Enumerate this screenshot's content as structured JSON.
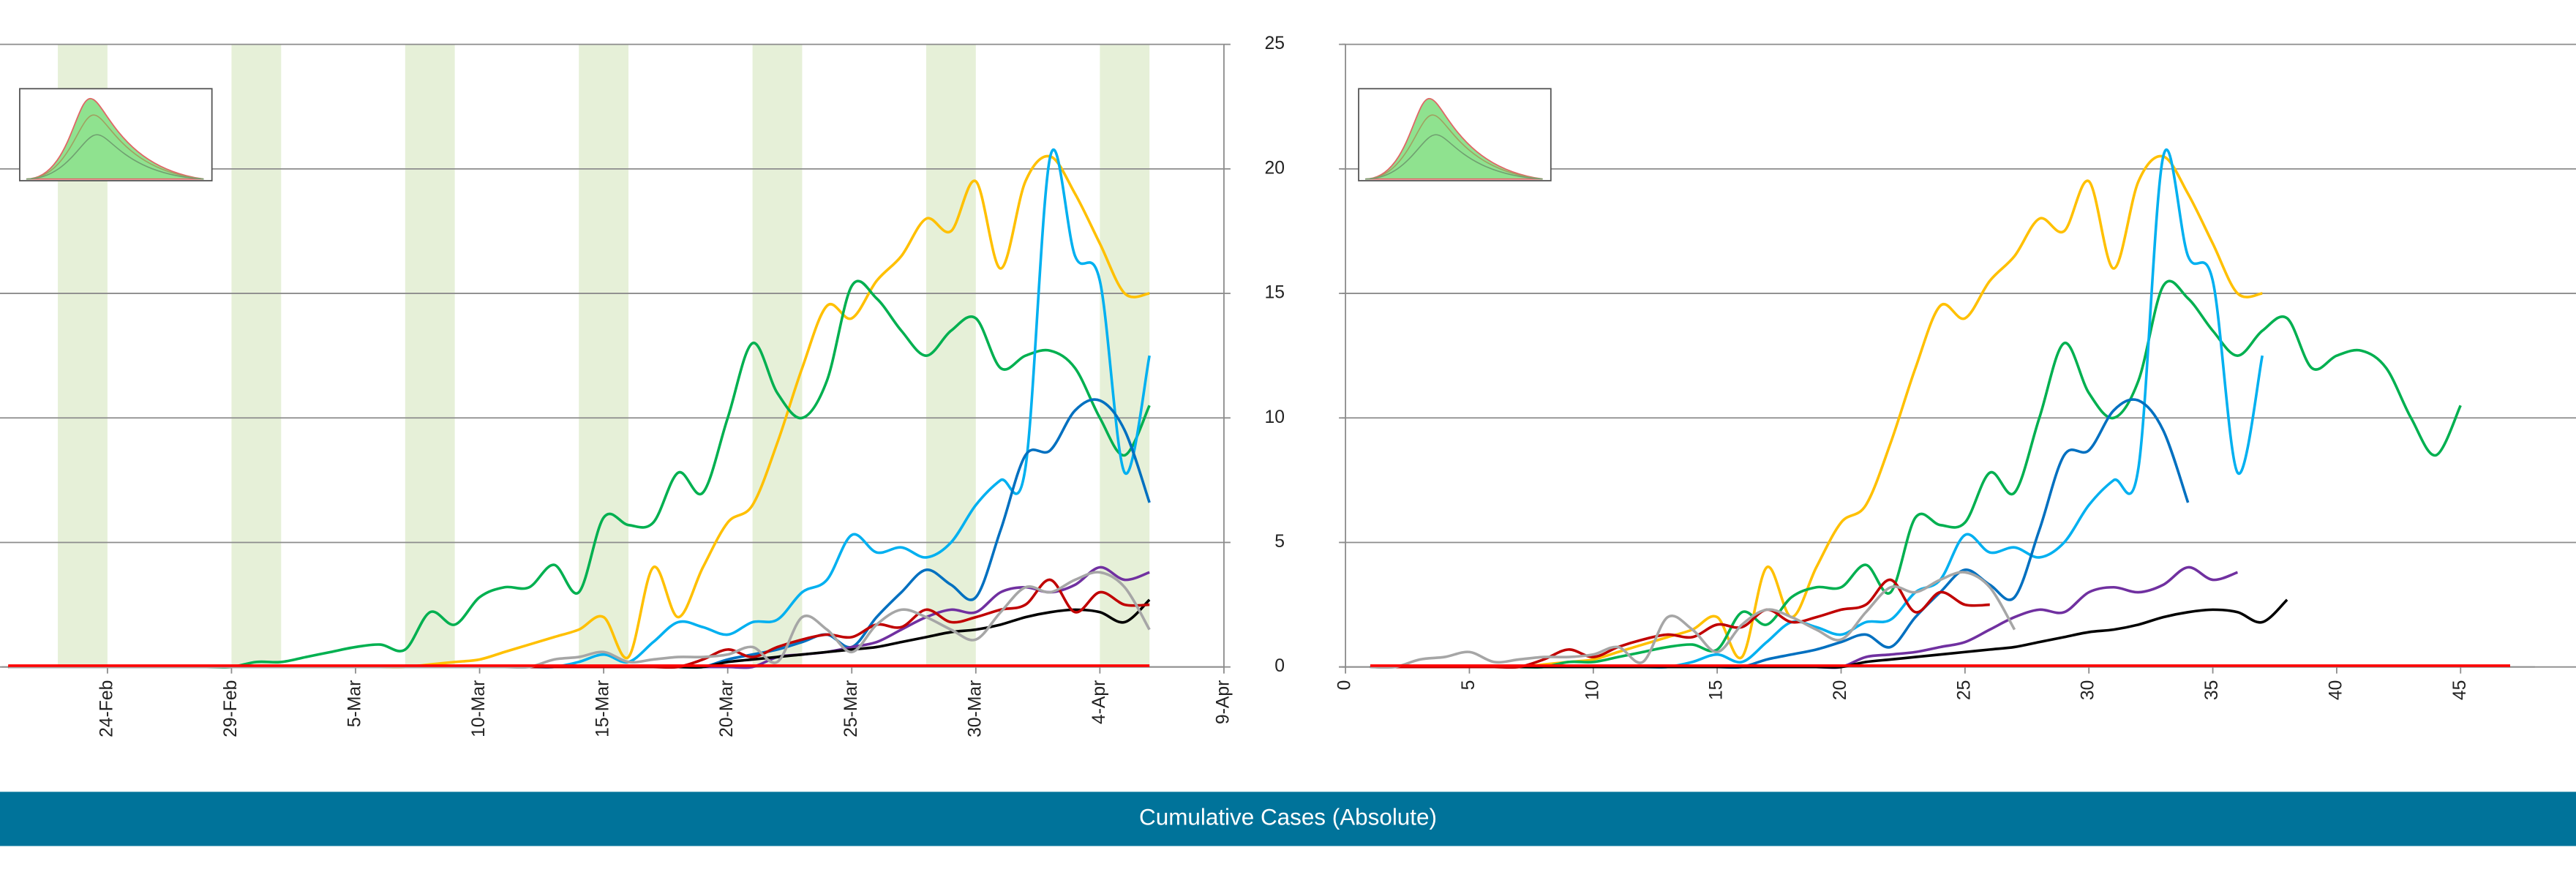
{
  "chart_data": [
    {
      "type": "line",
      "categories": [
        null,
        null,
        null,
        null,
        "24-Feb",
        null,
        null,
        null,
        null,
        "29-Feb",
        null,
        null,
        null,
        null,
        "5-Mar",
        null,
        null,
        null,
        null,
        "10-Mar",
        null,
        null,
        null,
        null,
        "15-Mar",
        null,
        null,
        null,
        null,
        "20-Mar",
        null,
        null,
        null,
        null,
        "25-Mar",
        null,
        null,
        null,
        null,
        "30-Mar",
        null,
        null,
        null,
        null,
        "4-Apr",
        null,
        null,
        null,
        null,
        "9-Apr"
      ],
      "ylim": [
        0,
        25
      ],
      "yticks": [
        0,
        5,
        10,
        15,
        20,
        25
      ],
      "grid": true,
      "series": [
        {
          "name": "yellow",
          "color": "#ffc000",
          "values": [
            0,
            0,
            0,
            0,
            0,
            0,
            0,
            0,
            0,
            0,
            0,
            0,
            0,
            0,
            0,
            0,
            0,
            0.1,
            0.2,
            0.3,
            0.6,
            0.9,
            1.2,
            1.5,
            2.0,
            0.4,
            4.0,
            2.0,
            4.0,
            5.8,
            6.5,
            9.0,
            12.0,
            14.5,
            14.0,
            15.5,
            16.5,
            18.0,
            17.5,
            19.5,
            16.0,
            19.5,
            20.5,
            19.0,
            17.0,
            15.0,
            15.0,
            null,
            null,
            null
          ]
        },
        {
          "name": "green",
          "color": "#00b050",
          "values": [
            0,
            0,
            0,
            0,
            0,
            0,
            0,
            0,
            0,
            0,
            0.2,
            0.2,
            0.4,
            0.6,
            0.8,
            0.9,
            0.7,
            2.2,
            1.7,
            2.8,
            3.2,
            3.2,
            4.1,
            3.0,
            6.0,
            5.7,
            5.8,
            7.8,
            7.0,
            10.0,
            13.0,
            11.0,
            10.0,
            11.5,
            15.3,
            14.8,
            13.5,
            12.5,
            13.5,
            14.0,
            12.0,
            12.5,
            12.7,
            12.0,
            10.0,
            8.5,
            10.5,
            null,
            null,
            null
          ]
        },
        {
          "name": "light-blue",
          "color": "#00b0f0",
          "values": [
            0,
            0,
            0,
            0,
            0,
            0,
            0,
            0,
            0,
            0,
            0,
            0,
            0,
            0,
            0,
            0,
            0,
            0,
            0,
            0,
            0,
            0,
            0,
            0.2,
            0.5,
            0.2,
            1.0,
            1.8,
            1.6,
            1.3,
            1.8,
            1.9,
            3.0,
            3.5,
            5.3,
            4.6,
            4.8,
            4.4,
            5.0,
            6.5,
            7.5,
            8.0,
            20.5,
            16.5,
            15.5,
            7.8,
            12.5,
            null,
            null,
            null
          ]
        },
        {
          "name": "dark-blue",
          "color": "#0070c0",
          "values": [
            0,
            0,
            0,
            0,
            0,
            0,
            0,
            0,
            0,
            0,
            0,
            0,
            0,
            0,
            0,
            0,
            0,
            0,
            0,
            0,
            0,
            0,
            0,
            0,
            0,
            0,
            0,
            0,
            0,
            0.3,
            0.5,
            0.7,
            1.0,
            1.3,
            0.8,
            2.0,
            3.0,
            3.9,
            3.3,
            2.8,
            5.5,
            8.5,
            8.7,
            10.3,
            10.7,
            9.5,
            6.6,
            null,
            null,
            null
          ]
        },
        {
          "name": "purple",
          "color": "#7030a0",
          "values": [
            0,
            0,
            0,
            0,
            0,
            0,
            0,
            0,
            0,
            0,
            0,
            0,
            0,
            0,
            0,
            0,
            0,
            0,
            0,
            0,
            0,
            0,
            0,
            0,
            0,
            0,
            0,
            0,
            0,
            0,
            0,
            0.4,
            0.5,
            0.6,
            0.8,
            1.0,
            1.5,
            2.0,
            2.3,
            2.2,
            3.0,
            3.2,
            3.0,
            3.3,
            4.0,
            3.5,
            3.8,
            null,
            null,
            null
          ]
        },
        {
          "name": "black",
          "color": "#000000",
          "values": [
            0,
            0,
            0,
            0,
            0,
            0,
            0,
            0,
            0,
            0,
            0,
            0,
            0,
            0,
            0,
            0,
            0,
            0,
            0,
            0,
            0,
            0,
            0,
            0,
            0,
            0,
            0,
            0,
            0,
            0.2,
            0.3,
            0.4,
            0.5,
            0.6,
            0.7,
            0.8,
            1.0,
            1.2,
            1.4,
            1.5,
            1.7,
            2.0,
            2.2,
            2.3,
            2.2,
            1.8,
            2.7,
            null,
            null,
            null
          ]
        },
        {
          "name": "dark-red",
          "color": "#c00000",
          "values": [
            0,
            0,
            0,
            0,
            0,
            0,
            0,
            0,
            0,
            0,
            0,
            0,
            0,
            0,
            0,
            0,
            0,
            0,
            0,
            0,
            0,
            0,
            0,
            0,
            0,
            0,
            0,
            0,
            0.3,
            0.7,
            0.4,
            0.8,
            1.1,
            1.3,
            1.2,
            1.7,
            1.6,
            2.3,
            1.8,
            2.0,
            2.3,
            2.5,
            3.5,
            2.2,
            3.0,
            2.5,
            2.5,
            null,
            null,
            null
          ]
        },
        {
          "name": "gray",
          "color": "#a6a6a6",
          "values": [
            0,
            0,
            0,
            0,
            0,
            0,
            0,
            0,
            0,
            0,
            0,
            0,
            0,
            0,
            0,
            0,
            0,
            0,
            0,
            0,
            0,
            0,
            0.3,
            0.4,
            0.6,
            0.2,
            0.3,
            0.4,
            0.4,
            0.5,
            0.8,
            0.2,
            2.0,
            1.5,
            0.6,
            1.7,
            2.3,
            2.0,
            1.5,
            1.1,
            2.2,
            3.2,
            3.0,
            3.5,
            3.8,
            3.2,
            1.5,
            null,
            null,
            null
          ]
        },
        {
          "name": "red",
          "color": "#ff0000",
          "values": [
            0.05,
            0.05,
            0.05,
            0.05,
            0.05,
            0.05,
            0.05,
            0.05,
            0.05,
            0.05,
            0.05,
            0.05,
            0.05,
            0.05,
            0.05,
            0.05,
            0.05,
            0.05,
            0.05,
            0.05,
            0.05,
            0.05,
            0.05,
            0.05,
            0.05,
            0.05,
            0.05,
            0.05,
            0.05,
            0.05,
            0.05,
            0.05,
            0.05,
            0.05,
            0.05,
            0.05,
            0.05,
            0.05,
            0.05,
            0.05,
            0.05,
            0.05,
            0.05,
            0.05,
            0.05,
            0.05,
            0.05,
            null,
            null,
            null
          ]
        }
      ]
    },
    {
      "type": "line",
      "x": [
        1,
        2,
        3,
        4,
        5,
        6,
        7,
        8,
        9,
        10,
        11,
        12,
        13,
        14,
        15,
        16,
        17,
        18,
        19,
        20,
        21,
        22,
        23,
        24,
        25,
        26,
        27,
        28,
        29,
        30,
        31,
        32,
        33,
        34,
        35,
        36,
        37,
        38,
        39,
        40,
        41,
        42,
        43,
        44,
        45,
        46,
        47
      ],
      "xlim": [
        0,
        48
      ],
      "xticks": [
        0,
        5,
        10,
        15,
        20,
        25,
        30,
        35,
        40,
        45
      ],
      "ylim": [
        0,
        25
      ],
      "yticks": [
        0,
        5,
        10,
        15,
        20,
        25
      ],
      "grid": true,
      "series": [
        {
          "name": "yellow",
          "color": "#ffc000",
          "values": [
            0,
            0,
            0,
            0,
            0,
            0,
            0,
            0.1,
            0.2,
            0.3,
            0.6,
            0.9,
            1.2,
            1.5,
            2.0,
            0.4,
            4.0,
            2.0,
            4.0,
            5.8,
            6.5,
            9.0,
            12.0,
            14.5,
            14.0,
            15.5,
            16.5,
            18.0,
            17.5,
            19.5,
            16.0,
            19.5,
            20.5,
            19.0,
            17.0,
            15.0,
            15.0,
            null,
            null,
            null,
            null,
            null,
            null,
            null,
            null,
            null,
            null
          ]
        },
        {
          "name": "green",
          "color": "#00b050",
          "values": [
            0,
            0,
            0,
            0,
            0,
            0,
            0,
            0,
            0.2,
            0.2,
            0.4,
            0.6,
            0.8,
            0.9,
            0.7,
            2.2,
            1.7,
            2.8,
            3.2,
            3.2,
            4.1,
            3.0,
            6.0,
            5.7,
            5.8,
            7.8,
            7.0,
            10.0,
            13.0,
            11.0,
            10.0,
            11.5,
            15.3,
            14.8,
            13.5,
            12.5,
            13.5,
            14.0,
            12.0,
            12.5,
            12.7,
            12.0,
            10.0,
            8.5,
            10.5,
            null,
            null
          ]
        },
        {
          "name": "light-blue",
          "color": "#00b0f0",
          "values": [
            0,
            0,
            0,
            0,
            0,
            0,
            0,
            0,
            0,
            0,
            0,
            0,
            0,
            0.2,
            0.5,
            0.2,
            1.0,
            1.8,
            1.6,
            1.3,
            1.8,
            1.9,
            3.0,
            3.5,
            5.3,
            4.6,
            4.8,
            4.4,
            5.0,
            6.5,
            7.5,
            8.0,
            20.5,
            16.5,
            15.5,
            7.8,
            12.5,
            null,
            null,
            null,
            null,
            null,
            null,
            null,
            null,
            null,
            null
          ]
        },
        {
          "name": "dark-blue",
          "color": "#0070c0",
          "values": [
            0,
            0,
            0,
            0,
            0,
            0,
            0,
            0,
            0,
            0,
            0,
            0,
            0,
            0,
            0,
            0,
            0.3,
            0.5,
            0.7,
            1.0,
            1.3,
            0.8,
            2.0,
            3.0,
            3.9,
            3.3,
            2.8,
            5.5,
            8.5,
            8.7,
            10.3,
            10.7,
            9.5,
            6.6,
            null,
            null,
            null,
            null,
            null,
            null,
            null,
            null,
            null,
            null,
            null,
            null,
            null
          ]
        },
        {
          "name": "purple",
          "color": "#7030a0",
          "values": [
            0,
            0,
            0,
            0,
            0,
            0,
            0,
            0,
            0,
            0,
            0,
            0,
            0,
            0,
            0,
            0,
            0,
            0,
            0,
            0,
            0.4,
            0.5,
            0.6,
            0.8,
            1.0,
            1.5,
            2.0,
            2.3,
            2.2,
            3.0,
            3.2,
            3.0,
            3.3,
            4.0,
            3.5,
            3.8,
            null,
            null,
            null,
            null,
            null,
            null,
            null,
            null,
            null,
            null,
            null
          ]
        },
        {
          "name": "black",
          "color": "#000000",
          "values": [
            0,
            0,
            0,
            0,
            0,
            0,
            0,
            0,
            0,
            0,
            0,
            0,
            0,
            0,
            0,
            0,
            0,
            0,
            0,
            0,
            0.2,
            0.3,
            0.4,
            0.5,
            0.6,
            0.7,
            0.8,
            1.0,
            1.2,
            1.4,
            1.5,
            1.7,
            2.0,
            2.2,
            2.3,
            2.2,
            1.8,
            2.7,
            null,
            null,
            null,
            null,
            null,
            null,
            null,
            null,
            null
          ]
        },
        {
          "name": "dark-red",
          "color": "#c00000",
          "values": [
            0,
            0,
            0,
            0,
            0,
            0,
            0,
            0.3,
            0.7,
            0.4,
            0.8,
            1.1,
            1.3,
            1.2,
            1.7,
            1.6,
            2.3,
            1.8,
            2.0,
            2.3,
            2.5,
            3.5,
            2.2,
            3.0,
            2.5,
            2.5,
            null,
            null,
            null,
            null,
            null,
            null,
            null,
            null,
            null,
            null,
            null,
            null,
            null,
            null,
            null,
            null,
            null,
            null,
            null,
            null,
            null
          ]
        },
        {
          "name": "gray",
          "color": "#a6a6a6",
          "values": [
            0,
            0,
            0.3,
            0.4,
            0.6,
            0.2,
            0.3,
            0.4,
            0.4,
            0.5,
            0.8,
            0.2,
            2.0,
            1.5,
            0.6,
            1.7,
            2.3,
            2.0,
            1.5,
            1.1,
            2.2,
            3.2,
            3.0,
            3.5,
            3.8,
            3.2,
            1.5,
            null,
            null,
            null,
            null,
            null,
            null,
            null,
            null,
            null,
            null,
            null,
            null,
            null,
            null,
            null,
            null,
            null,
            null,
            null,
            null
          ]
        },
        {
          "name": "red",
          "color": "#ff0000",
          "values": [
            0.05,
            0.05,
            0.05,
            0.05,
            0.05,
            0.05,
            0.05,
            0.05,
            0.05,
            0.05,
            0.05,
            0.05,
            0.05,
            0.05,
            0.05,
            0.05,
            0.05,
            0.05,
            0.05,
            0.05,
            0.05,
            0.05,
            0.05,
            0.05,
            0.05,
            0.05,
            0.05,
            0.05,
            0.05,
            0.05,
            0.05,
            0.05,
            0.05,
            0.05,
            0.05,
            0.05,
            0.05,
            0.05,
            0.05,
            0.05,
            0.05,
            0.05,
            0.05,
            0.05,
            0.05,
            0.05,
            0.05
          ]
        }
      ]
    }
  ],
  "banner": {
    "title": "Cumulative Cases (Absolute)"
  }
}
